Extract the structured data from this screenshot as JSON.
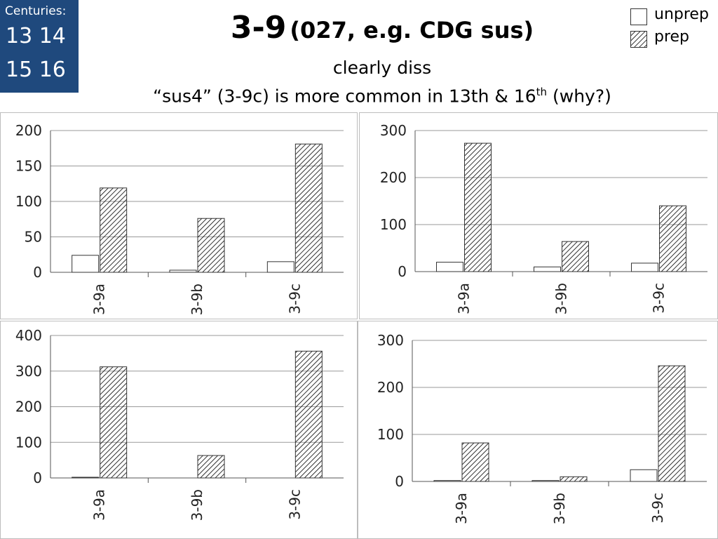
{
  "centuries": {
    "label": "Centuries:",
    "row1": "13 14",
    "row2": "15 16"
  },
  "title": {
    "main": "3-9",
    "paren": "(027, e.g. CDG sus)"
  },
  "subtitle": {
    "line1": "clearly diss",
    "line2_a": "“sus4” (3-9c) is more common in 13th & 16",
    "line2_sup": "th",
    "line2_b": " (why?)"
  },
  "legend": [
    {
      "label": "unprep",
      "style": "open",
      "color": "#ffffff"
    },
    {
      "label": "prep",
      "style": "hatched",
      "color": "#000000"
    }
  ],
  "chart_data": [
    {
      "type": "bar",
      "century": "13",
      "categories": [
        "3-9a",
        "3-9b",
        "3-9c"
      ],
      "series": [
        {
          "name": "unprep",
          "values": [
            24,
            3,
            15
          ]
        },
        {
          "name": "prep",
          "values": [
            119,
            76,
            181
          ]
        }
      ],
      "yticks": [
        0,
        50,
        100,
        150,
        200
      ],
      "ylim": [
        0,
        200
      ],
      "grid": true
    },
    {
      "type": "bar",
      "century": "14",
      "categories": [
        "3-9a",
        "3-9b",
        "3-9c"
      ],
      "series": [
        {
          "name": "unprep",
          "values": [
            20,
            10,
            18
          ]
        },
        {
          "name": "prep",
          "values": [
            273,
            64,
            140
          ]
        }
      ],
      "yticks": [
        0,
        100,
        200,
        300
      ],
      "ylim": [
        0,
        300
      ],
      "grid": true
    },
    {
      "type": "bar",
      "century": "15",
      "categories": [
        "3-9a",
        "3-9b",
        "3-9c"
      ],
      "series": [
        {
          "name": "unprep",
          "values": [
            2,
            0,
            0
          ]
        },
        {
          "name": "prep",
          "values": [
            312,
            63,
            356
          ]
        }
      ],
      "yticks": [
        0,
        100,
        200,
        300,
        400
      ],
      "ylim": [
        0,
        400
      ],
      "grid": true
    },
    {
      "type": "bar",
      "century": "16",
      "categories": [
        "3-9a",
        "3-9b",
        "3-9c"
      ],
      "series": [
        {
          "name": "unprep",
          "values": [
            2,
            2,
            25
          ]
        },
        {
          "name": "prep",
          "values": [
            82,
            10,
            246
          ]
        }
      ],
      "yticks": [
        0,
        100,
        200,
        300
      ],
      "ylim": [
        0,
        300
      ],
      "grid": true
    }
  ]
}
